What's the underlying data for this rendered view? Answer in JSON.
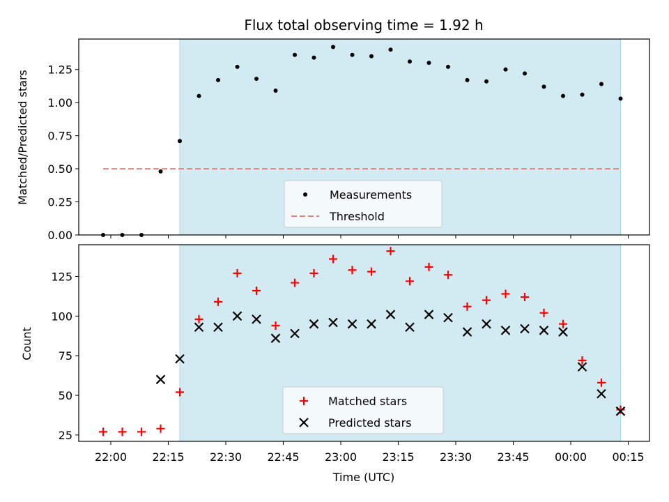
{
  "chart_data": [
    {
      "type": "scatter",
      "title": "Flux total observing time = 1.92 h",
      "xlabel": "",
      "ylabel": "Matched/Predicted stars",
      "ylim": [
        0,
        1.5
      ],
      "yticks": [
        "0.00",
        "0.25",
        "0.50",
        "0.75",
        "1.00",
        "1.25"
      ],
      "grid": false,
      "legend_position": "bottom-center",
      "shaded_region": {
        "x_start": "22:18",
        "x_end": "00:13",
        "color": "#add8e6"
      },
      "threshold": {
        "name": "Threshold",
        "value": 0.5,
        "x_start": "21:58",
        "x_end": "00:13",
        "color": "#f08080",
        "style": "dashed"
      },
      "series": [
        {
          "name": "Measurements",
          "marker": "dot",
          "color": "#000000",
          "x": [
            "21:58",
            "22:03",
            "22:08",
            "22:13",
            "22:18",
            "22:23",
            "22:28",
            "22:33",
            "22:38",
            "22:43",
            "22:48",
            "22:53",
            "22:58",
            "23:03",
            "23:08",
            "23:13",
            "23:18",
            "23:23",
            "23:28",
            "23:33",
            "23:38",
            "23:43",
            "23:48",
            "23:53",
            "23:58",
            "00:03",
            "00:08",
            "00:13"
          ],
          "values": [
            0.0,
            0.0,
            0.0,
            0.48,
            0.71,
            1.05,
            1.17,
            1.27,
            1.18,
            1.09,
            1.36,
            1.34,
            1.42,
            1.36,
            1.35,
            1.4,
            1.31,
            1.3,
            1.27,
            1.17,
            1.16,
            1.25,
            1.22,
            1.12,
            1.05,
            1.06,
            1.14,
            1.03
          ]
        }
      ]
    },
    {
      "type": "scatter",
      "xlabel": "Time (UTC)",
      "ylabel": "Count",
      "xticks": [
        "22:00",
        "22:15",
        "22:30",
        "22:45",
        "23:00",
        "23:15",
        "23:30",
        "23:45",
        "00:00",
        "00:15"
      ],
      "yticks": [
        "25",
        "50",
        "75",
        "100",
        "125"
      ],
      "ylim": [
        21,
        145
      ],
      "grid": false,
      "legend_position": "bottom-center",
      "shaded_region": {
        "x_start": "22:18",
        "x_end": "00:13",
        "color": "#add8e6"
      },
      "series": [
        {
          "name": "Matched stars",
          "marker": "plus",
          "color": "#ff0000",
          "x": [
            "21:58",
            "22:03",
            "22:08",
            "22:13",
            "22:18",
            "22:23",
            "22:28",
            "22:33",
            "22:38",
            "22:43",
            "22:48",
            "22:53",
            "22:58",
            "23:03",
            "23:08",
            "23:13",
            "23:18",
            "23:23",
            "23:28",
            "23:33",
            "23:38",
            "23:43",
            "23:48",
            "23:53",
            "23:58",
            "00:03",
            "00:08",
            "00:13"
          ],
          "values": [
            27,
            27,
            27,
            29,
            52,
            98,
            109,
            127,
            116,
            94,
            121,
            127,
            136,
            129,
            128,
            141,
            122,
            131,
            126,
            106,
            110,
            114,
            112,
            102,
            95,
            72,
            58,
            41
          ]
        },
        {
          "name": "Predicted stars",
          "marker": "x",
          "color": "#000000",
          "x": [
            "22:13",
            "22:18",
            "22:23",
            "22:28",
            "22:33",
            "22:38",
            "22:43",
            "22:48",
            "22:53",
            "22:58",
            "23:03",
            "23:08",
            "23:13",
            "23:18",
            "23:23",
            "23:28",
            "23:33",
            "23:38",
            "23:43",
            "23:48",
            "23:53",
            "23:58",
            "00:03",
            "00:08",
            "00:13"
          ],
          "values": [
            60,
            73,
            93,
            93,
            100,
            98,
            86,
            89,
            95,
            96,
            95,
            95,
            101,
            93,
            101,
            99,
            90,
            95,
            91,
            92,
            91,
            90,
            68,
            51,
            40
          ]
        }
      ]
    }
  ]
}
